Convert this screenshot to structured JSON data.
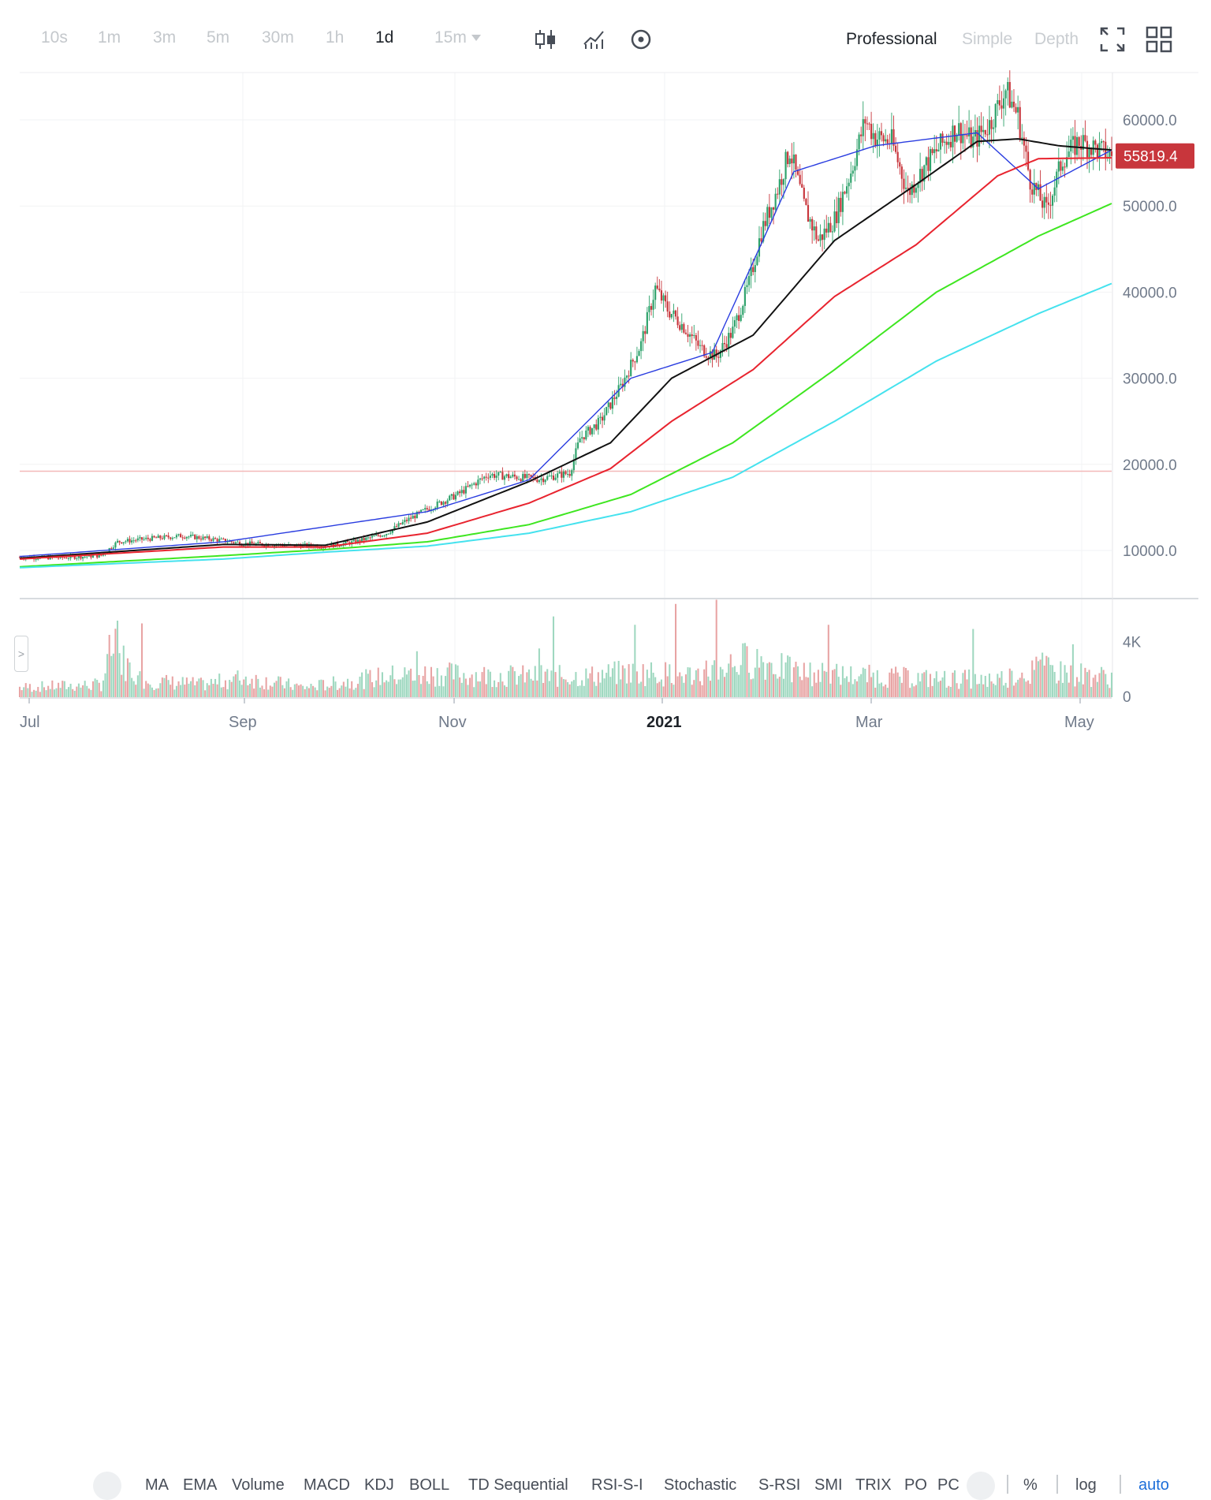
{
  "toolbar": {
    "timeframes": [
      "10s",
      "1m",
      "3m",
      "5m",
      "30m",
      "1h",
      "1d"
    ],
    "active_timeframe": "1d",
    "interval_dropdown": "15m",
    "views": [
      "Professional",
      "Simple",
      "Depth"
    ],
    "active_view": "Professional"
  },
  "icons": {
    "candle_type": "candlestick-icon",
    "indicators": "chart-indicator-icon",
    "settings": "target-settings-icon",
    "fullscreen": "fullscreen-icon",
    "layout": "grid-layout-icon"
  },
  "chart_data": {
    "type": "candlestick",
    "symbol_last_price": "55819.4",
    "price_axis_ticks": [
      "60000.0",
      "50000.0",
      "40000.0",
      "30000.0",
      "20000.0",
      "10000.0"
    ],
    "volume_axis_ticks": [
      "4K",
      "0"
    ],
    "time_axis_labels": [
      "Jul",
      "Sep",
      "Nov",
      "2021",
      "Mar",
      "May"
    ],
    "horizontal_level": 19200,
    "ylim": [
      4500,
      65500
    ],
    "volume_ylim": [
      0,
      6800
    ],
    "close_anchors": [
      [
        0,
        9200
      ],
      [
        20,
        9150
      ],
      [
        40,
        9400
      ],
      [
        48,
        11000
      ],
      [
        65,
        11400
      ],
      [
        80,
        11700
      ],
      [
        95,
        11300
      ],
      [
        110,
        10800
      ],
      [
        130,
        10600
      ],
      [
        150,
        10500
      ],
      [
        165,
        11000
      ],
      [
        180,
        12000
      ],
      [
        190,
        13500
      ],
      [
        200,
        14800
      ],
      [
        215,
        16500
      ],
      [
        230,
        18800
      ],
      [
        240,
        18600
      ],
      [
        255,
        18300
      ],
      [
        270,
        19000
      ],
      [
        275,
        23000
      ],
      [
        285,
        25000
      ],
      [
        295,
        29000
      ],
      [
        305,
        34000
      ],
      [
        312,
        40500
      ],
      [
        318,
        38000
      ],
      [
        326,
        36000
      ],
      [
        334,
        33500
      ],
      [
        342,
        32500
      ],
      [
        350,
        35500
      ],
      [
        358,
        41000
      ],
      [
        364,
        47000
      ],
      [
        372,
        52000
      ],
      [
        378,
        56500
      ],
      [
        385,
        50000
      ],
      [
        392,
        46000
      ],
      [
        400,
        48500
      ],
      [
        408,
        54000
      ],
      [
        415,
        60000
      ],
      [
        420,
        58000
      ],
      [
        428,
        57500
      ],
      [
        436,
        51500
      ],
      [
        444,
        54500
      ],
      [
        452,
        57000
      ],
      [
        460,
        59000
      ],
      [
        468,
        57500
      ],
      [
        476,
        59500
      ],
      [
        484,
        63500
      ],
      [
        490,
        60500
      ],
      [
        496,
        53000
      ],
      [
        504,
        49500
      ],
      [
        512,
        55500
      ],
      [
        520,
        57500
      ],
      [
        530,
        56500
      ],
      [
        536,
        55800
      ]
    ],
    "series": [
      {
        "name": "MA",
        "color": "#2a3de0",
        "line_points": [
          [
            0,
            9300
          ],
          [
            100,
            11000
          ],
          [
            200,
            14500
          ],
          [
            250,
            18200
          ],
          [
            300,
            30000
          ],
          [
            340,
            33000
          ],
          [
            380,
            54000
          ],
          [
            420,
            57000
          ],
          [
            470,
            58500
          ],
          [
            500,
            52000
          ],
          [
            536,
            56500
          ]
        ]
      },
      {
        "name": "MA",
        "color": "#111111",
        "line_points": [
          [
            0,
            9100
          ],
          [
            100,
            10700
          ],
          [
            150,
            10600
          ],
          [
            200,
            13300
          ],
          [
            250,
            18000
          ],
          [
            290,
            22500
          ],
          [
            320,
            30000
          ],
          [
            360,
            35000
          ],
          [
            400,
            46000
          ],
          [
            440,
            52500
          ],
          [
            470,
            57500
          ],
          [
            490,
            57800
          ],
          [
            510,
            57000
          ],
          [
            536,
            56500
          ]
        ]
      },
      {
        "name": "MA",
        "color": "#e8242f",
        "line_points": [
          [
            0,
            9000
          ],
          [
            100,
            10400
          ],
          [
            150,
            10400
          ],
          [
            200,
            12000
          ],
          [
            250,
            15500
          ],
          [
            290,
            19500
          ],
          [
            320,
            25000
          ],
          [
            360,
            31000
          ],
          [
            400,
            39500
          ],
          [
            440,
            45500
          ],
          [
            480,
            53500
          ],
          [
            500,
            55500
          ],
          [
            536,
            55600
          ]
        ]
      },
      {
        "name": "MA",
        "color": "#3ee620",
        "line_points": [
          [
            0,
            8100
          ],
          [
            100,
            9400
          ],
          [
            150,
            10100
          ],
          [
            200,
            11000
          ],
          [
            250,
            13000
          ],
          [
            300,
            16500
          ],
          [
            350,
            22500
          ],
          [
            400,
            31000
          ],
          [
            450,
            40000
          ],
          [
            500,
            46500
          ],
          [
            536,
            50300
          ]
        ]
      },
      {
        "name": "MA",
        "color": "#45e2ee",
        "line_points": [
          [
            0,
            8000
          ],
          [
            100,
            9000
          ],
          [
            150,
            9800
          ],
          [
            200,
            10500
          ],
          [
            250,
            12000
          ],
          [
            300,
            14500
          ],
          [
            350,
            18500
          ],
          [
            400,
            25000
          ],
          [
            450,
            32000
          ],
          [
            500,
            37500
          ],
          [
            536,
            41000
          ]
        ]
      }
    ],
    "volume_profile": [
      [
        0,
        700
      ],
      [
        40,
        900
      ],
      [
        45,
        3500
      ],
      [
        60,
        1200
      ],
      [
        90,
        900
      ],
      [
        110,
        1400
      ],
      [
        140,
        700
      ],
      [
        180,
        1500
      ],
      [
        200,
        1700
      ],
      [
        220,
        1600
      ],
      [
        250,
        1500
      ],
      [
        280,
        1500
      ],
      [
        300,
        1800
      ],
      [
        330,
        1600
      ],
      [
        360,
        2800
      ],
      [
        380,
        1800
      ],
      [
        400,
        1600
      ],
      [
        420,
        1500
      ],
      [
        450,
        1300
      ],
      [
        480,
        1300
      ],
      [
        500,
        2000
      ],
      [
        536,
        1400
      ]
    ],
    "volume_spikes": [
      [
        48,
        5500
      ],
      [
        60,
        5300
      ],
      [
        195,
        3300
      ],
      [
        255,
        3500
      ],
      [
        262,
        5800
      ],
      [
        302,
        5200
      ],
      [
        322,
        6700
      ],
      [
        342,
        7000
      ],
      [
        397,
        5200
      ],
      [
        468,
        4900
      ],
      [
        502,
        3200
      ],
      [
        517,
        3800
      ]
    ],
    "bar_count": 537
  },
  "bottom_bar": {
    "indicators": [
      "MA",
      "EMA",
      "Volume",
      "MACD",
      "KDJ",
      "BOLL",
      "TD Sequential",
      "RSI-S-I",
      "Stochastic",
      "S-RSI",
      "SMI",
      "TRIX",
      "PO",
      "PC"
    ],
    "percent": "%",
    "log": "log",
    "auto": "auto"
  }
}
